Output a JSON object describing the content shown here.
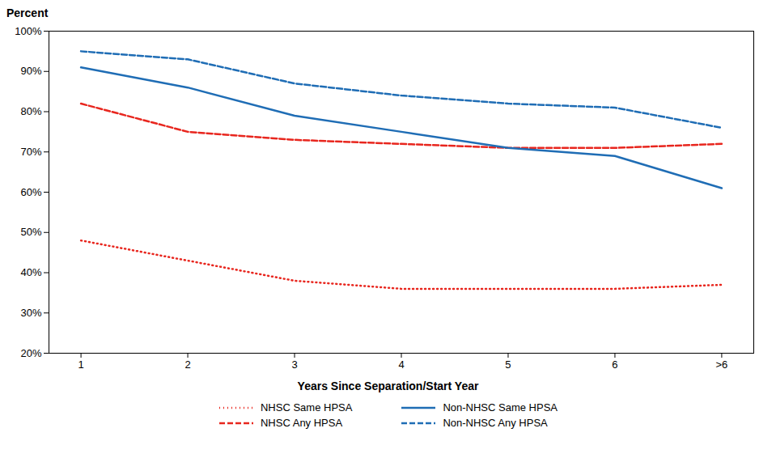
{
  "chart_data": {
    "type": "line",
    "xlabel": "Years Since Separation/Start Year",
    "ylabel": "Percent",
    "x": [
      1,
      2,
      3,
      4,
      5,
      6,
      7
    ],
    "series": [
      {
        "name": "NHSC Same HPSA",
        "color": "#e8261e",
        "line_style": "dotted",
        "values": [
          48,
          43,
          38,
          36,
          36,
          36,
          37
        ]
      },
      {
        "name": "NHSC Any HPSA",
        "color": "#e8261e",
        "line_style": "dashed",
        "values": [
          82,
          75,
          73,
          72,
          71,
          71,
          72
        ]
      },
      {
        "name": "Non-NHSC Same HPSA",
        "color": "#1f6db5",
        "line_style": "solid",
        "values": [
          91,
          86,
          79,
          75,
          71,
          69,
          61
        ]
      },
      {
        "name": "Non-NHSC Any HPSA",
        "color": "#1f6db5",
        "line_style": "dashed",
        "values": [
          95,
          93,
          87,
          84,
          82,
          81,
          76
        ]
      }
    ],
    "xlim": [
      0.7,
      7.3
    ],
    "xticks": [
      1,
      2,
      3,
      4,
      5,
      6,
      {
        "value": 7,
        "label": ">6"
      }
    ],
    "ylim": [
      20,
      100
    ],
    "yticks": [
      {
        "value": 20,
        "label": "20%"
      },
      {
        "value": 30,
        "label": "30%"
      },
      {
        "value": 40,
        "label": "40%"
      },
      {
        "value": 50,
        "label": "50%"
      },
      {
        "value": 60,
        "label": "60%"
      },
      {
        "value": 70,
        "label": "70%"
      },
      {
        "value": 80,
        "label": "80%"
      },
      {
        "value": 90,
        "label": "90%"
      },
      {
        "value": 100,
        "label": "100%"
      }
    ],
    "grid": false,
    "legend": "bottom"
  }
}
